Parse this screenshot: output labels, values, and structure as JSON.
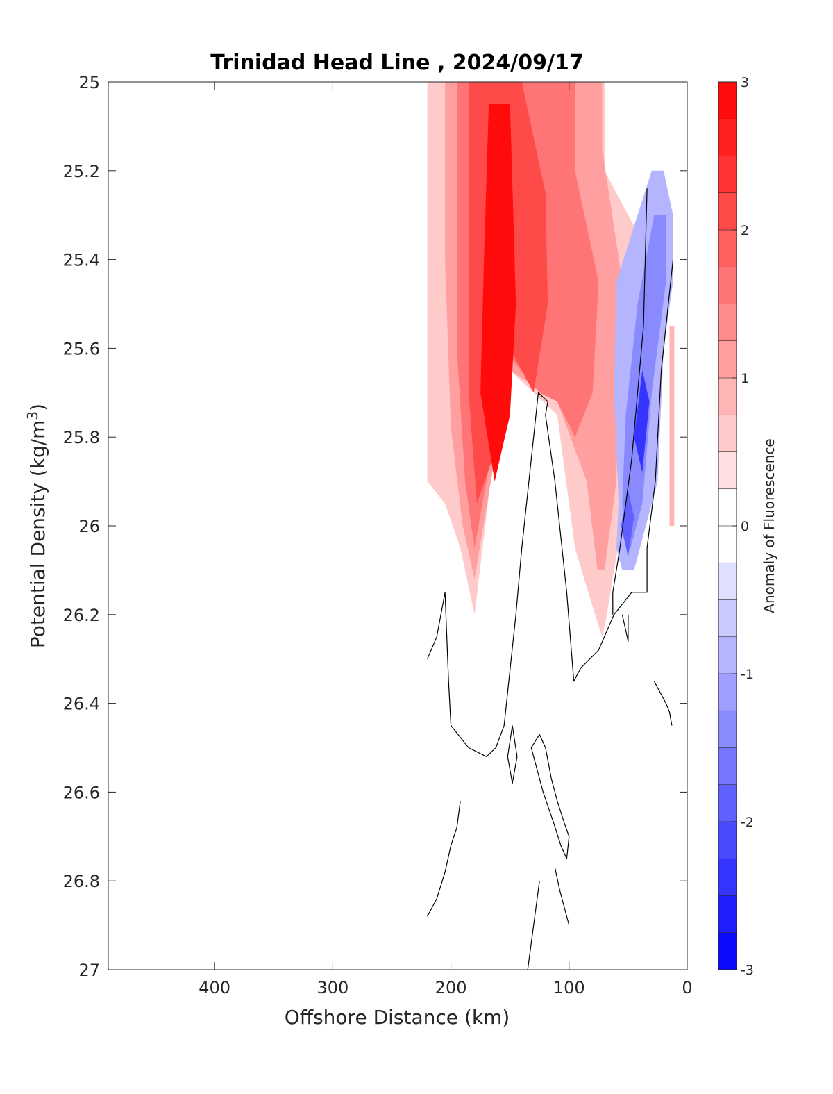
{
  "chart_data": {
    "type": "contour",
    "title": "Trinidad Head Line , 2024/09/17",
    "xlabel": "Offshore Distance (km)",
    "ylabel_prefix": "Potential Density (kg/m",
    "ylabel_sup": "3",
    "ylabel_suffix": ")",
    "colorbar_label": "Anomaly of Fluorescence",
    "xlim": [
      490,
      0
    ],
    "x_reversed": true,
    "ylim": [
      25,
      27
    ],
    "y_reversed": true,
    "xticks": [
      400,
      300,
      200,
      100,
      0
    ],
    "yticks": [
      "25",
      "25.2",
      "25.4",
      "25.6",
      "25.8",
      "26",
      "26.2",
      "26.4",
      "26.6",
      "26.8",
      "27"
    ],
    "colorbar": {
      "range": [
        -3,
        3
      ],
      "levels": 24,
      "ticks": [
        "3",
        "2",
        "1",
        "0",
        "-1",
        "-2",
        "-3"
      ],
      "colormap": "blue-white-red",
      "high_color": "#ff0000",
      "low_color": "#0000ff",
      "mid_color": "#ffffff"
    },
    "regions": [
      {
        "name": "faint positive envelope",
        "value": 0.6,
        "points": [
          [
            220,
            25
          ],
          [
            70,
            25
          ],
          [
            70,
            25.2
          ],
          [
            40,
            25.35
          ],
          [
            52,
            25.95
          ],
          [
            62,
            26.1
          ],
          [
            68,
            26.2
          ],
          [
            72,
            26.25
          ],
          [
            78,
            26.2
          ],
          [
            95,
            26.05
          ],
          [
            110,
            25.75
          ],
          [
            150,
            25.65
          ],
          [
            162,
            25.8
          ],
          [
            180,
            26.2
          ],
          [
            192,
            26.05
          ],
          [
            205,
            25.95
          ],
          [
            220,
            25.9
          ]
        ]
      },
      {
        "name": "light positive core",
        "value": 1.1,
        "points": [
          [
            205,
            25
          ],
          [
            72,
            25
          ],
          [
            72,
            25.15
          ],
          [
            55,
            25.45
          ],
          [
            60,
            25.9
          ],
          [
            70,
            26.1
          ],
          [
            76,
            26.1
          ],
          [
            85,
            25.9
          ],
          [
            110,
            25.72
          ],
          [
            150,
            25.65
          ],
          [
            160,
            25.8
          ],
          [
            180,
            26.12
          ],
          [
            190,
            26.0
          ],
          [
            200,
            25.78
          ],
          [
            205,
            25.4
          ]
        ]
      },
      {
        "name": "medium positive core",
        "value": 1.6,
        "points": [
          [
            195,
            25
          ],
          [
            95,
            25
          ],
          [
            95,
            25.2
          ],
          [
            75,
            25.45
          ],
          [
            80,
            25.7
          ],
          [
            95,
            25.8
          ],
          [
            110,
            25.72
          ],
          [
            125,
            25.7
          ],
          [
            150,
            25.62
          ],
          [
            160,
            25.75
          ],
          [
            180,
            26.05
          ],
          [
            188,
            25.9
          ],
          [
            195,
            25.6
          ]
        ]
      },
      {
        "name": "strong positive core",
        "value": 2.2,
        "points": [
          [
            185,
            25
          ],
          [
            140,
            25
          ],
          [
            120,
            25.25
          ],
          [
            118,
            25.5
          ],
          [
            130,
            25.7
          ],
          [
            150,
            25.6
          ],
          [
            165,
            25.85
          ],
          [
            178,
            25.95
          ],
          [
            185,
            25.7
          ]
        ]
      },
      {
        "name": "peak positive core",
        "value": 2.8,
        "points": [
          [
            168,
            25.05
          ],
          [
            150,
            25.05
          ],
          [
            145,
            25.5
          ],
          [
            150,
            25.75
          ],
          [
            163,
            25.9
          ],
          [
            175,
            25.7
          ],
          [
            172,
            25.4
          ]
        ]
      },
      {
        "name": "nearshore positive strip",
        "value": 0.9,
        "points": [
          [
            15,
            25.55
          ],
          [
            11,
            25.55
          ],
          [
            11,
            26.0
          ],
          [
            15,
            26.0
          ]
        ]
      },
      {
        "name": "negative band outer",
        "value": -0.8,
        "points": [
          [
            30,
            25.2
          ],
          [
            20,
            25.2
          ],
          [
            12,
            25.3
          ],
          [
            12,
            25.45
          ],
          [
            20,
            25.6
          ],
          [
            25,
            25.9
          ],
          [
            35,
            26.0
          ],
          [
            45,
            26.1
          ],
          [
            55,
            26.1
          ],
          [
            60,
            26.05
          ],
          [
            58,
            25.95
          ],
          [
            62,
            25.7
          ],
          [
            60,
            25.45
          ]
        ]
      },
      {
        "name": "negative band inner",
        "value": -1.5,
        "points": [
          [
            28,
            25.3
          ],
          [
            18,
            25.3
          ],
          [
            18,
            25.45
          ],
          [
            30,
            25.7
          ],
          [
            38,
            25.95
          ],
          [
            48,
            26.05
          ],
          [
            55,
            25.95
          ],
          [
            52,
            25.75
          ],
          [
            42,
            25.5
          ]
        ]
      },
      {
        "name": "negative minimum upper",
        "value": -2.3,
        "points": [
          [
            38,
            25.65
          ],
          [
            32,
            25.72
          ],
          [
            38,
            25.88
          ],
          [
            45,
            25.8
          ]
        ]
      },
      {
        "name": "negative minimum lower",
        "value": -2.0,
        "points": [
          [
            50,
            25.92
          ],
          [
            45,
            25.98
          ],
          [
            50,
            26.07
          ],
          [
            56,
            26.0
          ]
        ]
      }
    ],
    "zero_contours": [
      [
        [
          34,
          25.24
        ],
        [
          37,
          25.55
        ],
        [
          47,
          25.85
        ],
        [
          57,
          26.05
        ],
        [
          63,
          26.15
        ],
        [
          63,
          26.2
        ]
      ],
      [
        [
          12,
          25.4
        ],
        [
          22,
          25.65
        ],
        [
          27,
          25.9
        ],
        [
          34,
          26.05
        ],
        [
          34,
          26.15
        ],
        [
          47,
          26.15
        ],
        [
          62,
          26.2
        ],
        [
          75,
          26.28
        ],
        [
          90,
          26.32
        ],
        [
          96,
          26.35
        ],
        [
          102,
          26.15
        ],
        [
          112,
          25.9
        ],
        [
          120,
          25.75
        ],
        [
          118,
          25.72
        ],
        [
          126,
          25.7
        ],
        [
          130,
          25.8
        ],
        [
          140,
          26.05
        ],
        [
          145,
          26.2
        ],
        [
          155,
          26.45
        ],
        [
          162,
          26.5
        ],
        [
          170,
          26.52
        ],
        [
          185,
          26.5
        ],
        [
          200,
          26.45
        ],
        [
          202,
          26.35
        ],
        [
          205,
          26.15
        ],
        [
          212,
          26.25
        ],
        [
          220,
          26.3
        ]
      ],
      [
        [
          55,
          26.2
        ],
        [
          50,
          26.26
        ],
        [
          50,
          26.2
        ]
      ],
      [
        [
          28,
          26.35
        ],
        [
          18,
          26.4
        ],
        [
          15,
          26.42
        ],
        [
          13,
          26.45
        ]
      ],
      [
        [
          120,
          26.5
        ],
        [
          115,
          26.57
        ],
        [
          110,
          26.62
        ],
        [
          104,
          26.67
        ],
        [
          100,
          26.7
        ],
        [
          102,
          26.75
        ],
        [
          107,
          26.72
        ],
        [
          113,
          26.67
        ],
        [
          122,
          26.6
        ],
        [
          132,
          26.5
        ],
        [
          125,
          26.47
        ],
        [
          120,
          26.5
        ]
      ],
      [
        [
          148,
          26.45
        ],
        [
          144,
          26.52
        ],
        [
          148,
          26.58
        ],
        [
          152,
          26.52
        ],
        [
          148,
          26.45
        ]
      ],
      [
        [
          192,
          26.62
        ],
        [
          195,
          26.68
        ],
        [
          200,
          26.72
        ],
        [
          205,
          26.78
        ],
        [
          212,
          26.84
        ],
        [
          220,
          26.88
        ]
      ],
      [
        [
          125,
          26.8
        ],
        [
          130,
          26.9
        ],
        [
          135,
          27.0
        ]
      ],
      [
        [
          112,
          26.77
        ],
        [
          108,
          26.82
        ],
        [
          100,
          26.9
        ]
      ]
    ]
  }
}
